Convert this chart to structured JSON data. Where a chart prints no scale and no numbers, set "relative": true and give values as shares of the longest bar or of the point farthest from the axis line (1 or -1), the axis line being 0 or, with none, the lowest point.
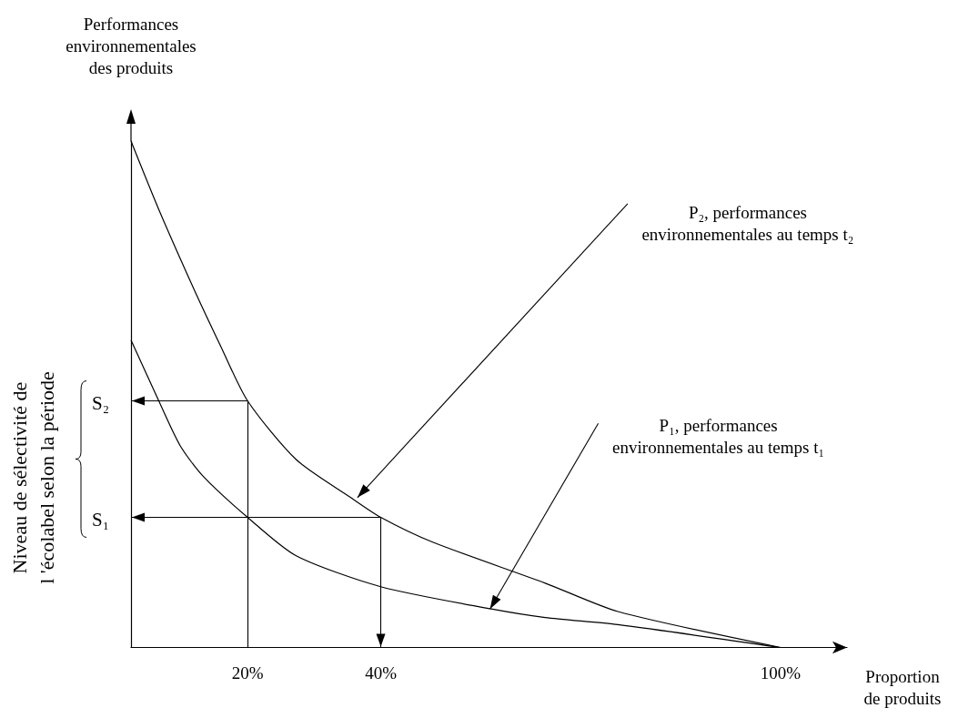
{
  "chart_data": {
    "type": "line",
    "relative": true,
    "ylabel": "Performances\nenvironnementales\ndes produits",
    "xlabel": "Proportion\nde produits",
    "xlim": [
      2.5,
      110
    ],
    "xticks": [
      {
        "value": 20,
        "label": "20%"
      },
      {
        "value": 40,
        "label": "40%"
      },
      {
        "value": 100,
        "label": "100%"
      }
    ],
    "grid": false,
    "marker": "none",
    "line_style": "solid",
    "series": [
      {
        "color": "#000000",
        "x": [
          2.5,
          6.7,
          11.9,
          16,
          20,
          27.3,
          35.5,
          40,
          47.8,
          64.7,
          75.6,
          100
        ],
        "values": [
          1,
          0.864,
          0.709,
          0.594,
          0.487,
          0.371,
          0.296,
          0.257,
          0.208,
          0.127,
          0.071,
          0
        ]
      },
      {
        "color": "#000000",
        "x": [
          2.5,
          6.7,
          9.9,
          13.4,
          20,
          27.3,
          40,
          56.6,
          64.7,
          75.6,
          100
        ],
        "values": [
          0.607,
          0.486,
          0.398,
          0.337,
          0.257,
          0.181,
          0.12,
          0.076,
          0.059,
          0.045,
          0
        ]
      }
    ],
    "ref_lines": [
      {
        "axis": "y",
        "value": 0.487,
        "label": "S₂"
      },
      {
        "axis": "y",
        "value": 0.257,
        "label": "S₁"
      },
      {
        "axis": "x",
        "value": 20
      },
      {
        "axis": "x",
        "value": 40
      }
    ],
    "annotations": [
      {
        "text": "P₂, performances\nenvironnementales au temps t₂",
        "x": 36.5,
        "y": 0.296
      },
      {
        "text": "P₁, performances\nenvironnementales au temps t₁",
        "x": 56.4,
        "y": 0.076
      },
      "Niveau de sélectivité de\nl 'écolabel selon la période"
    ]
  }
}
